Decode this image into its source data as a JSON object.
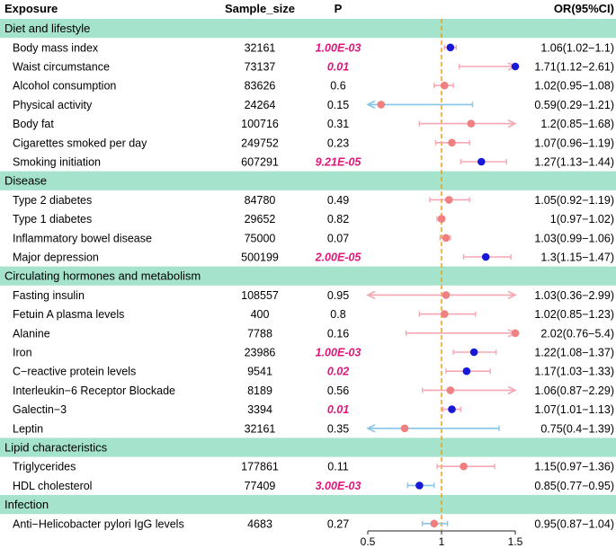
{
  "chart_data": {
    "type": "forest",
    "headers": {
      "exposure": "Exposure",
      "sample_size": "Sample_size",
      "p": "P",
      "or": "OR(95%CI)"
    },
    "x_ticks": [
      "0.5",
      "1",
      "1.5"
    ],
    "xlim": [
      0.5,
      1.5
    ],
    "reference_line": 1,
    "colors": {
      "section_band": "#a6e3cd",
      "significant_point": "#1818d8",
      "nonsignificant_point": "#f08080",
      "ci_up": "#f5a7b4",
      "ci_down": "#87c5e8",
      "reference_line": "#e8a21c",
      "significant_p_text": "#e0157a"
    },
    "sections": [
      {
        "name": "Diet and lifestyle",
        "rows": [
          {
            "exposure": "Body mass index",
            "sample_size": "32161",
            "p": "1.00E-03",
            "significant": true,
            "or_text": "1.06(1.02−1.1)",
            "or": 1.06,
            "lo": 1.02,
            "hi": 1.1
          },
          {
            "exposure": "Waist circumstance",
            "sample_size": "73137",
            "p": "0.01",
            "significant": true,
            "or_text": "1.71(1.12−2.61)",
            "or": 1.71,
            "lo": 1.12,
            "hi": 2.61
          },
          {
            "exposure": "Alcohol consumption",
            "sample_size": "83626",
            "p": "0.6",
            "significant": false,
            "or_text": "1.02(0.95−1.08)",
            "or": 1.02,
            "lo": 0.95,
            "hi": 1.08
          },
          {
            "exposure": "Physical activity",
            "sample_size": "24264",
            "p": "0.15",
            "significant": false,
            "or_text": "0.59(0.29−1.21)",
            "or": 0.59,
            "lo": 0.29,
            "hi": 1.21
          },
          {
            "exposure": "Body fat",
            "sample_size": "100716",
            "p": "0.31",
            "significant": false,
            "or_text": "1.2(0.85−1.68)",
            "or": 1.2,
            "lo": 0.85,
            "hi": 1.68
          },
          {
            "exposure": "Cigarettes smoked per day",
            "sample_size": "249752",
            "p": "0.23",
            "significant": false,
            "or_text": "1.07(0.96−1.19)",
            "or": 1.07,
            "lo": 0.96,
            "hi": 1.19
          },
          {
            "exposure": "Smoking initiation",
            "sample_size": "607291",
            "p": "9.21E-05",
            "significant": true,
            "or_text": "1.27(1.13−1.44)",
            "or": 1.27,
            "lo": 1.13,
            "hi": 1.44
          }
        ]
      },
      {
        "name": "Disease",
        "rows": [
          {
            "exposure": "Type 2 diabetes",
            "sample_size": "84780",
            "p": "0.49",
            "significant": false,
            "or_text": "1.05(0.92−1.19)",
            "or": 1.05,
            "lo": 0.92,
            "hi": 1.19
          },
          {
            "exposure": "Type 1 diabetes",
            "sample_size": "29652",
            "p": "0.82",
            "significant": false,
            "or_text": "1(0.97−1.02)",
            "or": 1.0,
            "lo": 0.97,
            "hi": 1.02
          },
          {
            "exposure": "Inflammatory bowel disease",
            "sample_size": "75000",
            "p": "0.07",
            "significant": false,
            "or_text": "1.03(0.99−1.06)",
            "or": 1.03,
            "lo": 0.99,
            "hi": 1.06
          },
          {
            "exposure": "Major depression",
            "sample_size": "500199",
            "p": "2.00E-05",
            "significant": true,
            "or_text": "1.3(1.15−1.47)",
            "or": 1.3,
            "lo": 1.15,
            "hi": 1.47
          }
        ]
      },
      {
        "name": "Circulating hormones and metabolism",
        "rows": [
          {
            "exposure": "Fasting insulin",
            "sample_size": "108557",
            "p": "0.95",
            "significant": false,
            "or_text": "1.03(0.36−2.99)",
            "or": 1.03,
            "lo": 0.36,
            "hi": 2.99
          },
          {
            "exposure": "Fetuin A plasma levels",
            "sample_size": "400",
            "p": "0.8",
            "significant": false,
            "or_text": "1.02(0.85−1.23)",
            "or": 1.02,
            "lo": 0.85,
            "hi": 1.23
          },
          {
            "exposure": "Alanine",
            "sample_size": "7788",
            "p": "0.16",
            "significant": false,
            "or_text": "2.02(0.76−5.4)",
            "or": 2.02,
            "lo": 0.76,
            "hi": 5.4
          },
          {
            "exposure": "Iron",
            "sample_size": "23986",
            "p": "1.00E-03",
            "significant": true,
            "or_text": "1.22(1.08−1.37)",
            "or": 1.22,
            "lo": 1.08,
            "hi": 1.37
          },
          {
            "exposure": "C−reactive protein levels",
            "sample_size": "9541",
            "p": "0.02",
            "significant": true,
            "or_text": "1.17(1.03−1.33)",
            "or": 1.17,
            "lo": 1.03,
            "hi": 1.33
          },
          {
            "exposure": "Interleukin−6 Receptor Blockade",
            "sample_size": "8189",
            "p": "0.56",
            "significant": false,
            "or_text": "1.06(0.87−2.29)",
            "or": 1.06,
            "lo": 0.87,
            "hi": 2.29
          },
          {
            "exposure": "Galectin−3",
            "sample_size": "3394",
            "p": "0.01",
            "significant": true,
            "or_text": "1.07(1.01−1.13)",
            "or": 1.07,
            "lo": 1.01,
            "hi": 1.13
          },
          {
            "exposure": "Leptin",
            "sample_size": "32161",
            "p": "0.35",
            "significant": false,
            "or_text": "0.75(0.4−1.39)",
            "or": 0.75,
            "lo": 0.4,
            "hi": 1.39
          }
        ]
      },
      {
        "name": "Lipid characteristics",
        "rows": [
          {
            "exposure": "Triglycerides",
            "sample_size": "177861",
            "p": "0.11",
            "significant": false,
            "or_text": "1.15(0.97−1.36)",
            "or": 1.15,
            "lo": 0.97,
            "hi": 1.36
          },
          {
            "exposure": "HDL cholesterol",
            "sample_size": "77409",
            "p": "3.00E-03",
            "significant": true,
            "or_text": "0.85(0.77−0.95)",
            "or": 0.85,
            "lo": 0.77,
            "hi": 0.95
          }
        ]
      },
      {
        "name": "Infection",
        "rows": [
          {
            "exposure": "Anti−Helicobacter pylori IgG levels",
            "sample_size": "4683",
            "p": "0.27",
            "significant": false,
            "or_text": "0.95(0.87−1.04)",
            "or": 0.95,
            "lo": 0.87,
            "hi": 1.04
          }
        ]
      }
    ]
  }
}
